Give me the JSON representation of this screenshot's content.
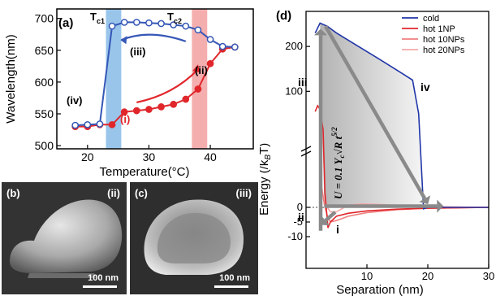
{
  "chart_data": [
    {
      "panel": "(a)",
      "type": "line",
      "xlabel": "Temperature(°C)",
      "ylabel": "Wavelength(nm)",
      "xlim": [
        15,
        47
      ],
      "ylim": [
        495,
        715
      ],
      "xticks": [
        20,
        30,
        40
      ],
      "yticks": [
        500,
        550,
        600,
        650,
        700
      ],
      "bands": [
        {
          "name": "Tc1",
          "label_main": "T",
          "label_sub": "c1",
          "from": 23,
          "to": 25.5,
          "color": "#7fb7e6"
        },
        {
          "name": "Tc2",
          "label_main": "T",
          "label_sub": "c2",
          "from": 37,
          "to": 39.5,
          "color": "#f29a9a"
        }
      ],
      "series": [
        {
          "color": "#e0262b",
          "marker": "filled",
          "x": [
            18,
            20,
            22,
            24,
            26,
            28,
            30,
            32,
            34,
            36,
            38,
            40,
            42,
            44
          ],
          "y": [
            530,
            530,
            533,
            533,
            553,
            555,
            557,
            561,
            565,
            573,
            589,
            629,
            652,
            655
          ]
        },
        {
          "color": "#3557b6",
          "marker": "open",
          "x": [
            18,
            20,
            22,
            24,
            26,
            28,
            30,
            32,
            34,
            36,
            38,
            40,
            42,
            44
          ],
          "y": [
            532,
            533,
            534,
            688,
            694,
            694,
            693,
            692,
            690,
            688,
            682,
            667,
            656,
            655
          ]
        }
      ],
      "annotations": [
        "(i)",
        "(ii)",
        "(iii)",
        "(iv)"
      ]
    },
    {
      "panel": "(d)",
      "type": "line",
      "xlabel": "Separation (nm)",
      "ylabel": "Energy (/k",
      "ylabel_math": "B",
      "ylabel_tail": "T)",
      "xlim": [
        0,
        30
      ],
      "xticks": [
        10,
        20,
        30
      ],
      "yticks_upper": [
        100,
        200
      ],
      "yticks_lower": [
        -10,
        -5,
        0
      ],
      "formula": "U = 0.1 Y",
      "formula_sub": "c",
      "formula_tail": "√R t",
      "formula_sup": "5/2",
      "legend": [
        "cold",
        "hot 1NP",
        "hot 10NPs",
        "hot 20NPs"
      ],
      "legend_position": "top-right",
      "series": [
        {
          "name": "cold",
          "color": "#2136a8",
          "x": [
            1.5,
            2.3,
            3.5,
            5,
            8,
            12,
            16,
            17.5,
            18.5,
            19.3,
            20,
            23,
            30
          ],
          "y": [
            230,
            252,
            245,
            230,
            205,
            172,
            138,
            125,
            50,
            -0.5,
            0,
            0,
            0
          ]
        },
        {
          "name": "hot 1NP",
          "color": "#e0262b",
          "x": [
            1.5,
            1.9,
            2.2,
            2.5,
            2.8,
            3.1,
            3.4,
            3.6,
            4,
            5,
            7,
            10,
            15,
            20,
            30
          ],
          "y": [
            55,
            68,
            62,
            40,
            15,
            5,
            -2,
            -7,
            -5,
            -3,
            -2,
            -1.2,
            -0.6,
            -0.3,
            0
          ]
        },
        {
          "name": "hot 10NPs",
          "color": "#f08080",
          "x": [
            2.5,
            3,
            3.5,
            4,
            5,
            7,
            10,
            15,
            20,
            30
          ],
          "y": [
            8,
            1,
            -3,
            -5,
            -4.5,
            -3,
            -1.8,
            -0.8,
            -0.3,
            0
          ]
        },
        {
          "name": "hot 20NPs",
          "color": "#f5a9a9",
          "x": [
            3,
            3.5,
            4,
            5,
            7,
            9,
            12,
            16,
            20,
            30
          ],
          "y": [
            4,
            0,
            -1.5,
            -1.5,
            0.8,
            1.2,
            1,
            0.6,
            0.3,
            0
          ]
        }
      ],
      "annotations": [
        "iv",
        "iii",
        "ii",
        "i"
      ]
    }
  ],
  "panels": {
    "a_label": "(a)",
    "d_label": "(d)",
    "b_label": "(b)",
    "b_state": "(ii)",
    "b_scale": "100 nm",
    "c_label": "(c)",
    "c_state": "(iii)",
    "c_scale": "100 nm"
  },
  "colors": {
    "red": "#e0262b",
    "blue": "#3557b6",
    "band_blue": "#7fb7e6",
    "band_red": "#f29a9a"
  }
}
